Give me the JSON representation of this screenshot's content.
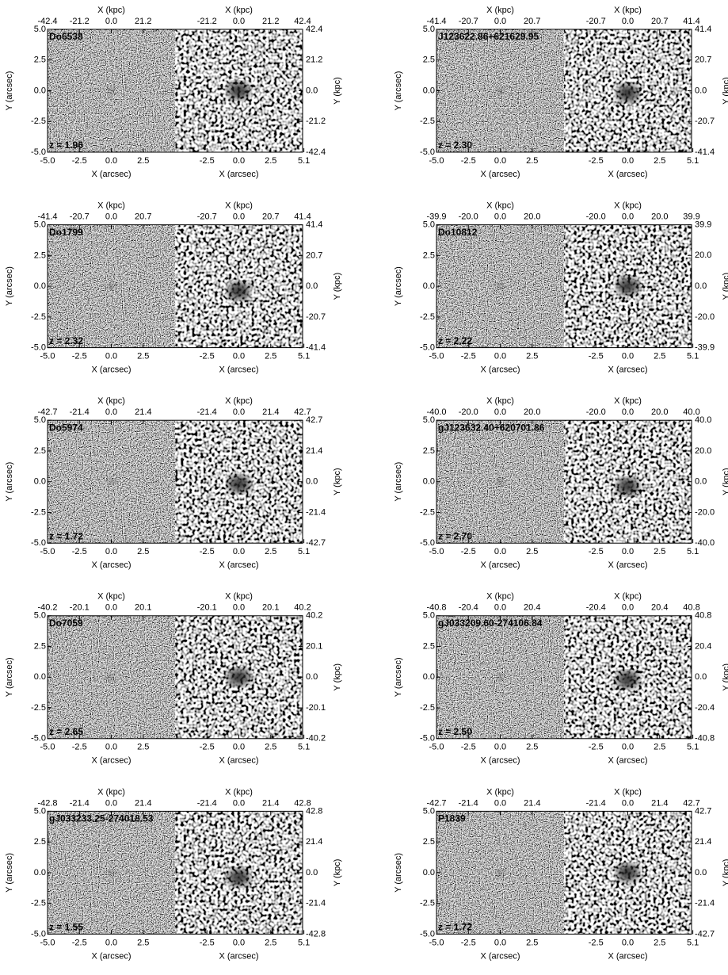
{
  "axes": {
    "x_label": "X (arcsec)",
    "y_label": "Y (arcsec)",
    "x2_label": "X (kpc)",
    "y2_label": "Y (kpc)",
    "x_ticks_left": [
      {
        "value": -5,
        "label": "-5.0"
      },
      -2.5,
      {
        "value": 0,
        "label": "0.0"
      },
      2.5
    ],
    "x_ticks_right": [
      -2.5,
      {
        "value": 0,
        "label": "0.0"
      },
      2.5,
      5.1
    ],
    "y_ticks": [
      {
        "value": 5,
        "label": "5.0"
      },
      2.5,
      {
        "value": 0,
        "label": "0.0"
      },
      -2.5,
      {
        "value": -5,
        "label": "-5.0"
      }
    ]
  },
  "panels": [
    {
      "name": "Do6538",
      "redshift": "z = 1.96",
      "kpc_ticks": [
        -42.4,
        -21.2,
        {
          "value": 0,
          "label": "0.0"
        },
        21.2,
        42.4
      ]
    },
    {
      "name": "J123622.86+621629.95",
      "redshift": "z = 2.30",
      "kpc_ticks": [
        -41.4,
        -20.7,
        {
          "value": 0,
          "label": "0.0"
        },
        20.7,
        41.4
      ]
    },
    {
      "name": "Do1799",
      "redshift": "z = 2.32",
      "kpc_ticks": [
        -41.4,
        -20.7,
        {
          "value": 0,
          "label": "0.0"
        },
        20.7,
        41.4
      ]
    },
    {
      "name": "Do10812",
      "redshift": "z = 2.22",
      "kpc_ticks": [
        -39.9,
        {
          "value": -20,
          "label": "-20.0"
        },
        {
          "value": 0,
          "label": "0.0"
        },
        {
          "value": 20,
          "label": "20.0"
        },
        39.9
      ]
    },
    {
      "name": "Do5974",
      "redshift": "z = 1.72",
      "kpc_ticks": [
        -42.7,
        -21.4,
        {
          "value": 0,
          "label": "0.0"
        },
        21.4,
        42.7
      ]
    },
    {
      "name": "gJ123632.40+620701.86",
      "redshift": "z = 2.70",
      "kpc_ticks": [
        {
          "value": -40,
          "label": "-40.0"
        },
        {
          "value": -20,
          "label": "-20.0"
        },
        {
          "value": 0,
          "label": "0.0"
        },
        {
          "value": 20,
          "label": "20.0"
        },
        {
          "value": 40,
          "label": "40.0"
        }
      ]
    },
    {
      "name": "Do7059",
      "redshift": "z = 2.65",
      "kpc_ticks": [
        -40.2,
        -20.1,
        {
          "value": 0,
          "label": "0.0"
        },
        20.1,
        40.2
      ]
    },
    {
      "name": "gJ033209.60-274106.84",
      "redshift": "z = 2.50",
      "kpc_ticks": [
        -40.8,
        -20.4,
        {
          "value": 0,
          "label": "0.0"
        },
        20.4,
        40.8
      ]
    },
    {
      "name": "gJ033233.25-274018.53",
      "redshift": "z = 1.55",
      "kpc_ticks": [
        -42.8,
        -21.4,
        {
          "value": 0,
          "label": "0.0"
        },
        21.4,
        42.8
      ]
    },
    {
      "name": "P1839",
      "redshift": "z = 1.72",
      "kpc_ticks": [
        -42.7,
        -21.4,
        {
          "value": 0,
          "label": "0.0"
        },
        21.4,
        42.7
      ]
    }
  ]
}
